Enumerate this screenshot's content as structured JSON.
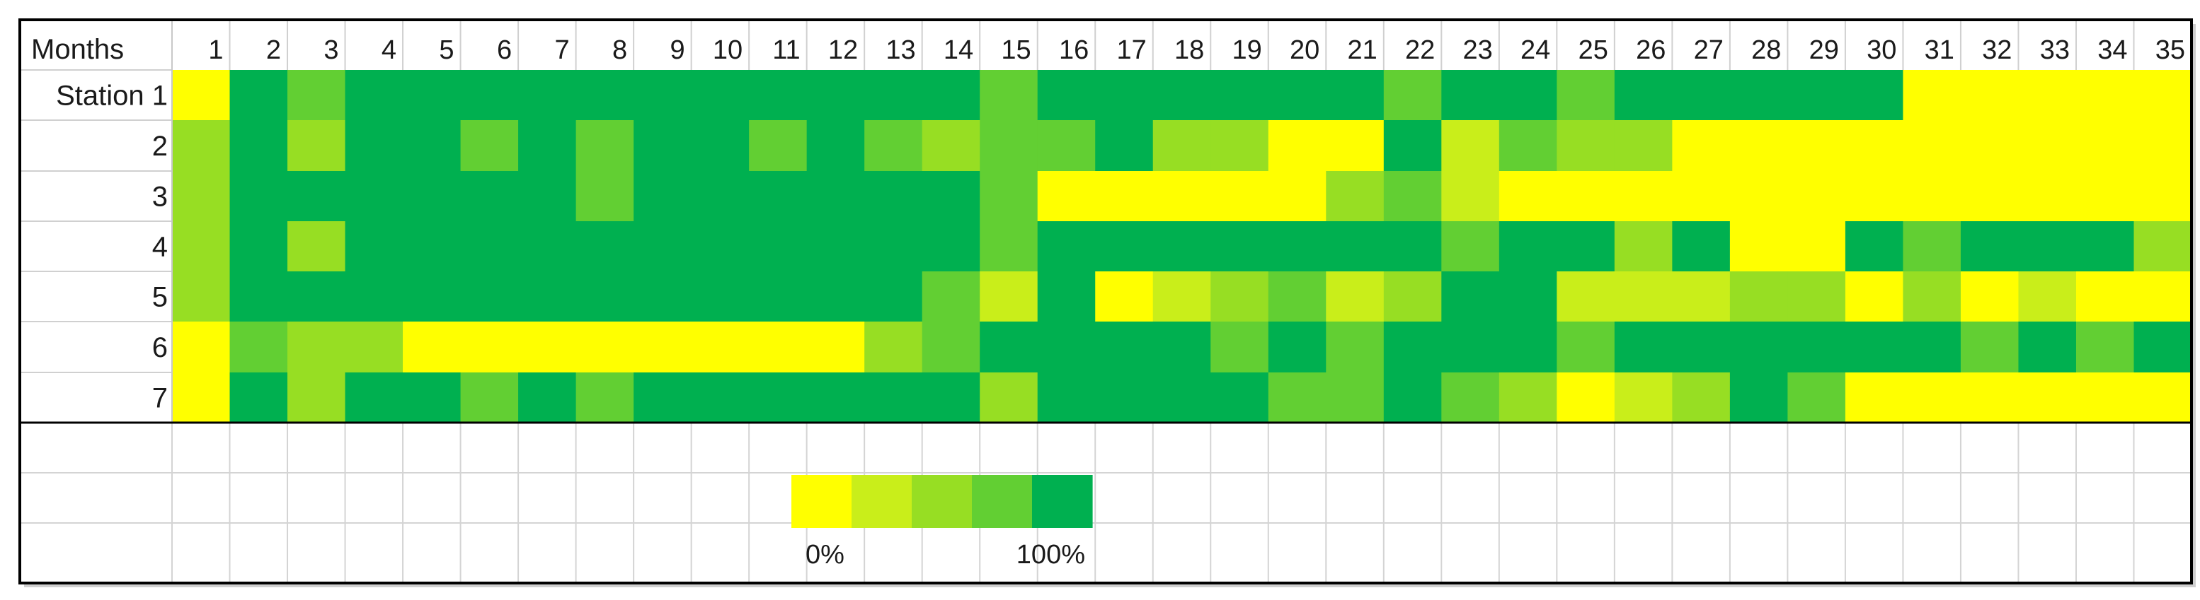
{
  "chart_data": {
    "type": "heatmap",
    "corner_label": "Months",
    "x_labels": [
      "1",
      "2",
      "3",
      "4",
      "5",
      "6",
      "7",
      "8",
      "9",
      "10",
      "11",
      "12",
      "13",
      "14",
      "15",
      "16",
      "17",
      "18",
      "19",
      "20",
      "21",
      "22",
      "23",
      "24",
      "25",
      "26",
      "27",
      "28",
      "29",
      "30",
      "31",
      "32",
      "33",
      "34",
      "35"
    ],
    "y_labels": [
      "Station 1",
      "2",
      "3",
      "4",
      "5",
      "6",
      "7"
    ],
    "levels": [
      0,
      0.25,
      0.5,
      0.75,
      1
    ],
    "colors": [
      "#ffff00",
      "#c9ee1a",
      "#97de23",
      "#62cf33",
      "#00b050"
    ],
    "values": [
      [
        0,
        1,
        0.75,
        1,
        1,
        1,
        1,
        1,
        1,
        1,
        1,
        1,
        1,
        1,
        0.75,
        1,
        1,
        1,
        1,
        1,
        1,
        0.75,
        1,
        1,
        0.75,
        1,
        1,
        1,
        1,
        1,
        0,
        0,
        0,
        0,
        0
      ],
      [
        0.5,
        1,
        0.5,
        1,
        1,
        0.75,
        1,
        0.75,
        1,
        1,
        0.75,
        1,
        0.75,
        0.5,
        0.75,
        0.75,
        1,
        0.5,
        0.5,
        0,
        0,
        1,
        0.25,
        0.75,
        0.5,
        0.5,
        0,
        0,
        0,
        0,
        0,
        0,
        0,
        0,
        0
      ],
      [
        0.5,
        1,
        1,
        1,
        1,
        1,
        1,
        0.75,
        1,
        1,
        1,
        1,
        1,
        1,
        0.75,
        0,
        0,
        0,
        0,
        0,
        0.5,
        0.75,
        0.25,
        0,
        0,
        0,
        0,
        0,
        0,
        0,
        0,
        0,
        0,
        0,
        0
      ],
      [
        0.5,
        1,
        0.5,
        1,
        1,
        1,
        1,
        1,
        1,
        1,
        1,
        1,
        1,
        1,
        0.75,
        1,
        1,
        1,
        1,
        1,
        1,
        1,
        0.75,
        1,
        1,
        0.5,
        1,
        0,
        0,
        1,
        0.75,
        1,
        1,
        1,
        0.5
      ],
      [
        0.5,
        1,
        1,
        1,
        1,
        1,
        1,
        1,
        1,
        1,
        1,
        1,
        1,
        0.75,
        0.25,
        1,
        0,
        0.25,
        0.5,
        0.75,
        0.25,
        0.5,
        1,
        1,
        0.25,
        0.25,
        0.25,
        0.5,
        0.5,
        0,
        0.5,
        0,
        0.25,
        0,
        0
      ],
      [
        0,
        0.75,
        0.5,
        0.5,
        0,
        0,
        0,
        0,
        0,
        0,
        0,
        0,
        0.5,
        0.75,
        1,
        1,
        1,
        1,
        0.75,
        1,
        0.75,
        1,
        1,
        1,
        0.75,
        1,
        1,
        1,
        1,
        1,
        1,
        0.75,
        1,
        0.75,
        1
      ],
      [
        0,
        1,
        0.5,
        1,
        1,
        0.75,
        1,
        0.75,
        1,
        1,
        1,
        1,
        1,
        1,
        0.5,
        1,
        1,
        1,
        1,
        0.75,
        0.75,
        1,
        0.75,
        0.5,
        0,
        0.25,
        0.5,
        1,
        0.75,
        0,
        0,
        0,
        0,
        0,
        0
      ]
    ],
    "legend": {
      "min_label": "0%",
      "max_label": "100%"
    }
  }
}
